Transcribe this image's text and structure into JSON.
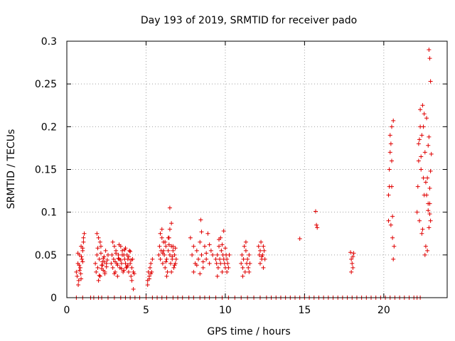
{
  "chart_data": {
    "type": "scatter",
    "title": "Day 193 of 2019, SRMTID for receiver pado",
    "xlabel": "GPS time / hours",
    "ylabel": "SRMTID / TECUs",
    "xlim": [
      0,
      24
    ],
    "ylim": [
      0,
      0.3
    ],
    "xticks": [
      0,
      5,
      10,
      15,
      20
    ],
    "xtick_labels": [
      "0",
      "5",
      "10",
      "15",
      "20"
    ],
    "yticks": [
      0,
      0.05,
      0.1,
      0.15,
      0.2,
      0.25,
      0.3
    ],
    "ytick_labels": [
      "0",
      "0.05",
      "0.1",
      "0.15",
      "0.2",
      "0.25",
      "0.3"
    ],
    "grid": true,
    "marker": "+",
    "color": "#e00000",
    "series": [
      {
        "name": "SRMTID",
        "x": [
          0.6,
          0.7,
          0.75,
          0.8,
          0.85,
          0.9,
          0.95,
          1.0,
          1.05,
          1.1,
          0.65,
          0.72,
          0.78,
          0.88,
          0.92,
          1.0,
          1.05,
          0.7,
          0.8,
          0.9,
          1.0,
          1.8,
          1.85,
          1.9,
          1.95,
          2.0,
          2.05,
          2.1,
          2.15,
          2.2,
          2.25,
          2.3,
          2.35,
          2.4,
          2.45,
          2.5,
          2.55,
          2.6,
          1.9,
          2.0,
          2.1,
          2.2,
          2.3,
          2.4,
          2.5,
          1.95,
          2.05,
          2.15,
          2.25,
          2.35,
          2.8,
          2.85,
          2.9,
          2.95,
          3.0,
          3.05,
          3.1,
          3.15,
          3.2,
          3.25,
          3.3,
          3.35,
          3.4,
          3.45,
          3.5,
          3.55,
          3.6,
          3.65,
          3.7,
          3.75,
          3.8,
          3.85,
          3.9,
          3.95,
          4.0,
          4.05,
          4.1,
          4.15,
          4.2,
          2.9,
          3.0,
          3.1,
          3.2,
          3.3,
          3.4,
          3.5,
          3.6,
          3.7,
          3.8,
          3.9,
          4.0,
          4.1,
          4.2,
          3.05,
          3.25,
          3.45,
          3.65,
          3.85,
          4.05,
          4.25,
          5.1,
          5.15,
          5.2,
          5.25,
          5.3,
          5.35,
          5.4,
          5.1,
          5.2,
          5.3,
          5.8,
          5.85,
          5.9,
          5.95,
          6.0,
          6.05,
          6.1,
          6.15,
          6.2,
          6.25,
          6.3,
          6.35,
          6.4,
          6.45,
          6.5,
          6.55,
          6.6,
          6.65,
          6.7,
          6.75,
          6.8,
          6.85,
          6.9,
          5.9,
          6.0,
          6.1,
          6.2,
          6.3,
          6.4,
          6.5,
          6.6,
          6.7,
          6.8,
          6.05,
          6.25,
          6.45,
          6.65,
          6.85,
          6.6,
          6.5,
          7.8,
          7.9,
          8.0,
          8.1,
          8.2,
          8.3,
          8.4,
          8.5,
          8.6,
          8.7,
          8.8,
          8.9,
          9.0,
          9.1,
          9.2,
          8.0,
          8.2,
          8.4,
          8.6,
          8.8,
          9.0,
          8.5,
          8.45,
          9.4,
          9.45,
          9.5,
          9.55,
          9.6,
          9.65,
          9.7,
          9.75,
          9.8,
          9.85,
          9.9,
          9.95,
          10.0,
          10.05,
          10.1,
          10.15,
          10.2,
          10.25,
          9.5,
          9.7,
          9.9,
          10.1,
          9.6,
          9.8,
          10.0,
          11.0,
          11.05,
          11.1,
          11.15,
          11.2,
          11.25,
          11.3,
          11.35,
          11.4,
          11.45,
          11.5,
          11.55,
          11.1,
          11.3,
          11.5,
          12.1,
          12.15,
          12.2,
          12.25,
          12.3,
          12.35,
          12.4,
          12.45,
          12.5,
          12.2,
          12.4,
          12.3,
          14.7,
          15.7,
          15.75,
          15.8,
          17.9,
          17.95,
          18.0,
          18.05,
          18.1,
          17.95,
          18.05,
          20.3,
          20.35,
          20.4,
          20.45,
          20.5,
          20.55,
          20.6,
          20.65,
          20.3,
          20.4,
          20.5,
          20.6,
          20.45,
          20.55,
          20.35,
          20.5,
          22.1,
          22.15,
          22.2,
          22.25,
          22.3,
          22.35,
          22.4,
          22.45,
          22.5,
          22.55,
          22.6,
          22.65,
          22.7,
          22.75,
          22.8,
          22.85,
          22.9,
          22.95,
          23.0,
          22.2,
          22.3,
          22.4,
          22.5,
          22.6,
          22.7,
          22.8,
          22.9,
          22.25,
          22.45,
          22.65,
          22.85,
          22.35,
          22.55,
          22.75,
          22.95,
          22.8,
          22.9,
          22.85,
          22.95,
          22.9,
          0.6,
          1.0,
          1.5,
          1.7,
          2.0,
          2.2,
          2.6,
          3.0,
          3.4,
          3.7,
          4.0,
          4.3,
          4.6,
          5.0,
          5.4,
          5.7,
          6.0,
          6.3,
          6.7,
          7.0,
          7.3,
          7.7,
          8.0,
          8.4,
          8.7,
          9.0,
          9.4,
          9.8,
          10.2,
          10.6,
          11.0,
          11.4,
          11.8,
          12.2,
          12.6,
          12.9,
          13.2,
          13.5,
          13.8,
          14.1,
          14.4,
          14.7,
          15.0,
          15.3,
          15.6,
          15.9,
          16.2,
          16.5,
          16.8,
          17.1,
          17.4,
          17.7,
          18.0,
          18.3,
          18.6,
          18.9,
          19.2,
          19.5,
          19.8,
          20.1,
          20.4,
          20.7,
          21.0,
          21.3,
          21.6,
          21.9,
          22.1,
          22.3
        ],
        "y": [
          0.03,
          0.04,
          0.02,
          0.05,
          0.035,
          0.06,
          0.045,
          0.055,
          0.07,
          0.075,
          0.025,
          0.015,
          0.038,
          0.028,
          0.048,
          0.042,
          0.065,
          0.052,
          0.032,
          0.022,
          0.058,
          0.04,
          0.03,
          0.05,
          0.035,
          0.07,
          0.045,
          0.025,
          0.06,
          0.038,
          0.042,
          0.032,
          0.048,
          0.028,
          0.055,
          0.036,
          0.044,
          0.05,
          0.075,
          0.02,
          0.065,
          0.034,
          0.046,
          0.03,
          0.04,
          0.058,
          0.026,
          0.052,
          0.038,
          0.042,
          0.04,
          0.05,
          0.035,
          0.045,
          0.06,
          0.03,
          0.055,
          0.04,
          0.025,
          0.05,
          0.045,
          0.035,
          0.06,
          0.04,
          0.055,
          0.03,
          0.05,
          0.045,
          0.04,
          0.035,
          0.05,
          0.045,
          0.03,
          0.055,
          0.04,
          0.025,
          0.035,
          0.045,
          0.03,
          0.065,
          0.028,
          0.052,
          0.038,
          0.062,
          0.044,
          0.05,
          0.032,
          0.058,
          0.036,
          0.048,
          0.054,
          0.02,
          0.01,
          0.042,
          0.046,
          0.034,
          0.056,
          0.038,
          0.044,
          0.028,
          0.02,
          0.03,
          0.025,
          0.035,
          0.04,
          0.03,
          0.045,
          0.015,
          0.022,
          0.028,
          0.05,
          0.06,
          0.045,
          0.055,
          0.07,
          0.04,
          0.065,
          0.05,
          0.035,
          0.06,
          0.045,
          0.03,
          0.055,
          0.07,
          0.05,
          0.04,
          0.06,
          0.045,
          0.055,
          0.035,
          0.05,
          0.04,
          0.045,
          0.075,
          0.08,
          0.055,
          0.065,
          0.025,
          0.07,
          0.08,
          0.03,
          0.06,
          0.038,
          0.052,
          0.042,
          0.062,
          0.048,
          0.058,
          0.087,
          0.105,
          0.07,
          0.05,
          0.06,
          0.04,
          0.055,
          0.045,
          0.065,
          0.05,
          0.035,
          0.06,
          0.045,
          0.075,
          0.04,
          0.055,
          0.05,
          0.03,
          0.038,
          0.028,
          0.042,
          0.052,
          0.062,
          0.077,
          0.091,
          0.045,
          0.04,
          0.05,
          0.035,
          0.06,
          0.045,
          0.04,
          0.055,
          0.03,
          0.05,
          0.045,
          0.04,
          0.035,
          0.05,
          0.045,
          0.04,
          0.035,
          0.05,
          0.025,
          0.07,
          0.078,
          0.03,
          0.068,
          0.062,
          0.058,
          0.04,
          0.05,
          0.035,
          0.045,
          0.06,
          0.03,
          0.055,
          0.04,
          0.045,
          0.035,
          0.05,
          0.04,
          0.025,
          0.065,
          0.03,
          0.06,
          0.05,
          0.055,
          0.065,
          0.045,
          0.05,
          0.06,
          0.055,
          0.045,
          0.04,
          0.035,
          0.048,
          0.069,
          0.101,
          0.085,
          0.082,
          0.053,
          0.045,
          0.04,
          0.035,
          0.052,
          0.03,
          0.048,
          0.09,
          0.13,
          0.17,
          0.18,
          0.13,
          0.095,
          0.207,
          0.06,
          0.12,
          0.19,
          0.16,
          0.045,
          0.085,
          0.07,
          0.15,
          0.2,
          0.1,
          0.13,
          0.18,
          0.09,
          0.22,
          0.15,
          0.19,
          0.08,
          0.2,
          0.12,
          0.17,
          0.06,
          0.21,
          0.14,
          0.11,
          0.29,
          0.28,
          0.253,
          0.168,
          0.16,
          0.2,
          0.075,
          0.14,
          0.05,
          0.12,
          0.178,
          0.098,
          0.185,
          0.225,
          0.135,
          0.188,
          0.165,
          0.215,
          0.055,
          0.148,
          0.102,
          0.128,
          0.082,
          0.09,
          0.11,
          0,
          0,
          0,
          0,
          0,
          0,
          0,
          0,
          0,
          0,
          0,
          0,
          0,
          0,
          0,
          0,
          0,
          0,
          0,
          0,
          0,
          0,
          0,
          0,
          0,
          0,
          0,
          0,
          0,
          0,
          0,
          0,
          0,
          0,
          0,
          0,
          0,
          0,
          0,
          0,
          0,
          0,
          0,
          0,
          0,
          0,
          0,
          0,
          0,
          0,
          0,
          0,
          0,
          0,
          0,
          0,
          0,
          0,
          0,
          0,
          0,
          0,
          0,
          0,
          0,
          0,
          0,
          0
        ]
      }
    ]
  }
}
